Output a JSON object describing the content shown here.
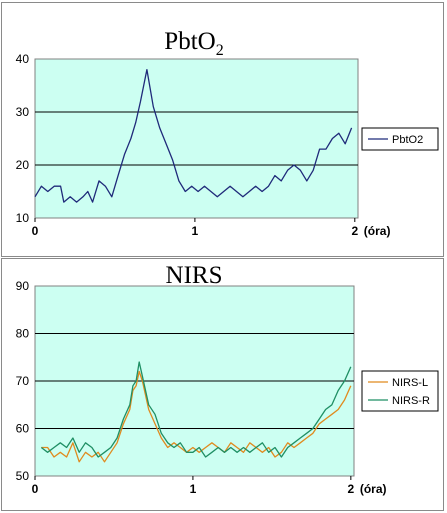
{
  "chart_data": [
    {
      "type": "line",
      "title_main": "PbtO",
      "title_sub": "2",
      "x_unit_label": "(óra)",
      "xlim": [
        0,
        2.02
      ],
      "xticks": [
        0,
        1,
        2
      ],
      "ylim": [
        10,
        40
      ],
      "yticks": [
        10,
        20,
        30,
        40
      ],
      "grid": true,
      "legend_position": "right",
      "background_color": "#ccfff2",
      "x": [
        0.0,
        0.04,
        0.08,
        0.12,
        0.16,
        0.18,
        0.22,
        0.26,
        0.3,
        0.33,
        0.36,
        0.4,
        0.44,
        0.48,
        0.52,
        0.56,
        0.6,
        0.63,
        0.66,
        0.7,
        0.74,
        0.78,
        0.82,
        0.86,
        0.9,
        0.94,
        0.98,
        1.02,
        1.06,
        1.1,
        1.14,
        1.18,
        1.22,
        1.26,
        1.3,
        1.34,
        1.38,
        1.42,
        1.46,
        1.5,
        1.54,
        1.58,
        1.62,
        1.66,
        1.7,
        1.74,
        1.78,
        1.82,
        1.86,
        1.9,
        1.94,
        1.98
      ],
      "series": [
        {
          "name": "PbtO2",
          "color": "#1f2a7a",
          "values": [
            14,
            16,
            15,
            16,
            16,
            13,
            14,
            13,
            14,
            15,
            13,
            17,
            16,
            14,
            18,
            22,
            25,
            28,
            32,
            38,
            31,
            27,
            24,
            21,
            17,
            15,
            16,
            15,
            16,
            15,
            14,
            15,
            16,
            15,
            14,
            15,
            16,
            15,
            16,
            18,
            17,
            19,
            20,
            19,
            17,
            19,
            23,
            23,
            25,
            26,
            24,
            27
          ]
        }
      ]
    },
    {
      "type": "line",
      "title_main": "NIRS",
      "x_unit_label": "(óra)",
      "xlim": [
        0,
        2.02
      ],
      "xticks": [
        0,
        1,
        2
      ],
      "ylim": [
        50,
        90
      ],
      "yticks": [
        50,
        60,
        70,
        80,
        90
      ],
      "grid": true,
      "legend_position": "right",
      "background_color": "#ccfff2",
      "x": [
        0.04,
        0.08,
        0.12,
        0.16,
        0.2,
        0.24,
        0.28,
        0.32,
        0.36,
        0.4,
        0.44,
        0.48,
        0.52,
        0.56,
        0.6,
        0.62,
        0.64,
        0.66,
        0.68,
        0.72,
        0.76,
        0.8,
        0.84,
        0.88,
        0.92,
        0.96,
        1.0,
        1.04,
        1.08,
        1.12,
        1.16,
        1.2,
        1.24,
        1.28,
        1.32,
        1.36,
        1.4,
        1.44,
        1.48,
        1.52,
        1.56,
        1.6,
        1.64,
        1.68,
        1.72,
        1.76,
        1.8,
        1.84,
        1.88,
        1.92,
        1.96,
        2.0
      ],
      "series": [
        {
          "name": "NIRS-L",
          "color": "#e08a1e",
          "values": [
            56,
            56,
            54,
            55,
            54,
            57,
            53,
            55,
            54,
            55,
            53,
            55,
            57,
            61,
            64,
            68,
            69,
            72,
            70,
            64,
            61,
            58,
            56,
            57,
            56,
            55,
            56,
            55,
            56,
            57,
            56,
            55,
            57,
            56,
            55,
            57,
            56,
            55,
            56,
            54,
            55,
            57,
            56,
            57,
            58,
            59,
            61,
            62,
            63,
            64,
            66,
            69
          ]
        },
        {
          "name": "NIRS-R",
          "color": "#1f8f64",
          "values": [
            56,
            55,
            56,
            57,
            56,
            58,
            55,
            57,
            56,
            54,
            55,
            56,
            58,
            62,
            65,
            69,
            70,
            74,
            71,
            65,
            63,
            59,
            57,
            56,
            57,
            55,
            55,
            56,
            54,
            55,
            56,
            55,
            56,
            55,
            56,
            55,
            56,
            57,
            55,
            56,
            54,
            56,
            57,
            58,
            59,
            60,
            62,
            64,
            65,
            68,
            70,
            73
          ]
        }
      ]
    }
  ]
}
